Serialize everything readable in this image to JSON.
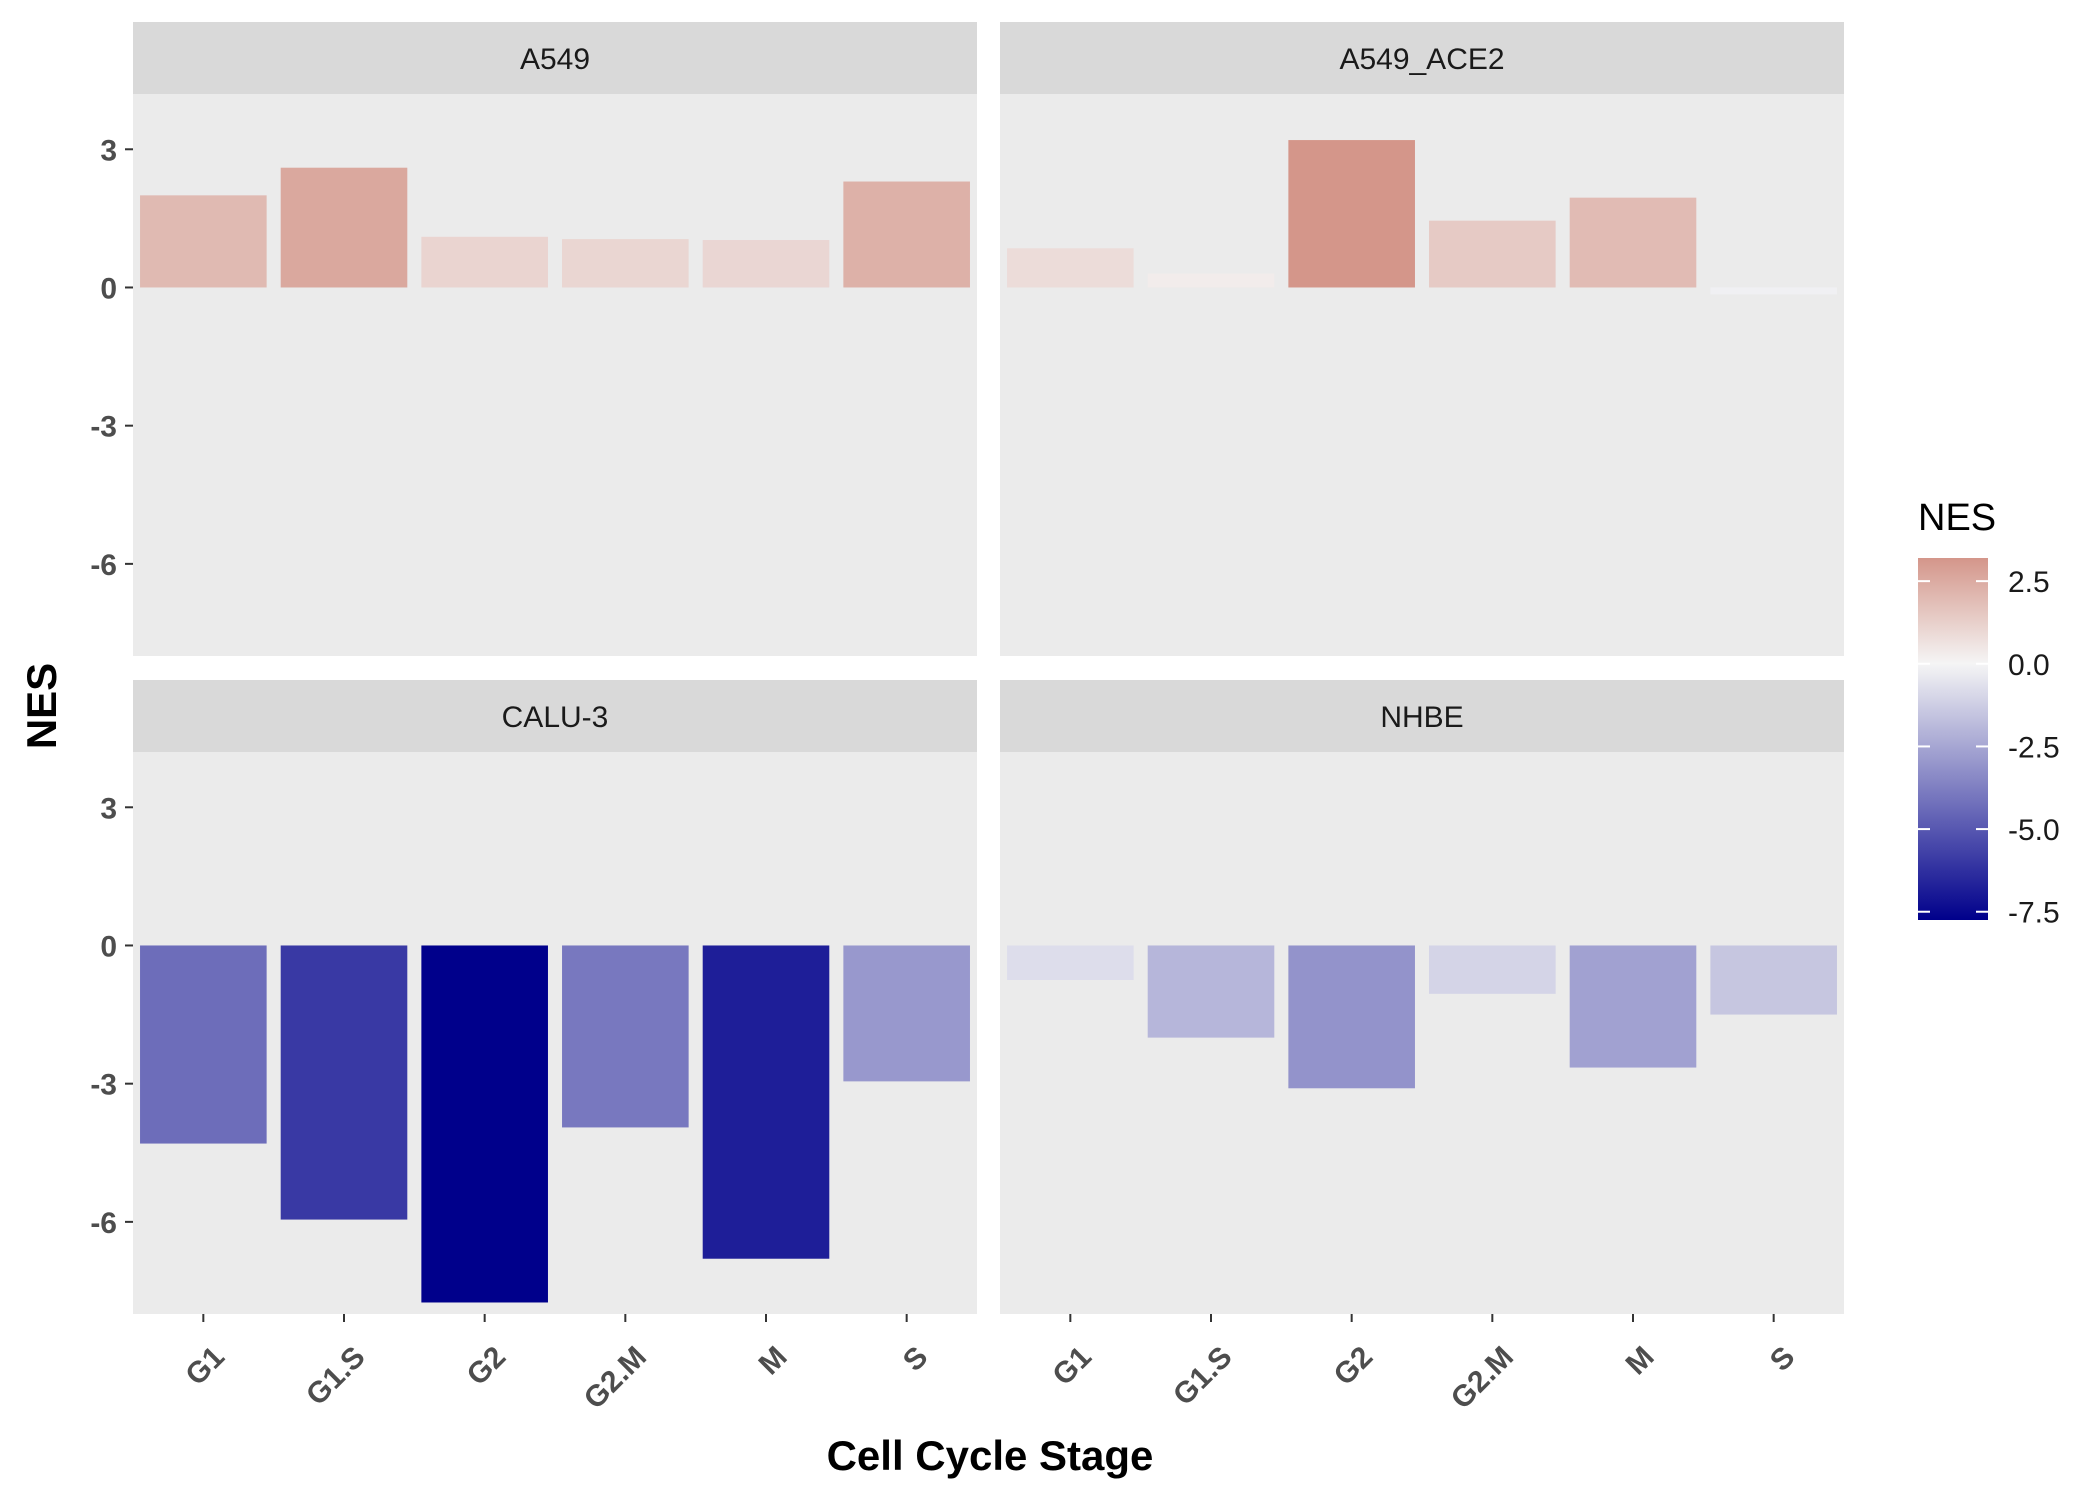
{
  "chart_data": {
    "type": "bar",
    "facet_layout": "2x2",
    "xlabel": "Cell Cycle Stage",
    "ylabel": "NES",
    "ylim": [
      -8.0,
      4.2
    ],
    "yticks": [
      3,
      0,
      -3,
      -6
    ],
    "grid": false,
    "categories": [
      "G1",
      "G1.S",
      "G2",
      "G2.M",
      "M",
      "S"
    ],
    "facets": [
      {
        "name": "A549",
        "values": [
          2.0,
          2.6,
          1.1,
          1.05,
          1.03,
          2.3
        ]
      },
      {
        "name": "A549_ACE2",
        "values": [
          0.85,
          0.3,
          3.2,
          1.45,
          1.95,
          -0.15
        ]
      },
      {
        "name": "CALU-3",
        "values": [
          -4.3,
          -5.95,
          -7.75,
          -3.95,
          -6.8,
          -2.95
        ]
      },
      {
        "name": "NHBE",
        "values": [
          -0.75,
          -2.0,
          -3.1,
          -1.05,
          -2.65,
          -1.5
        ]
      }
    ],
    "legend": {
      "title": "NES",
      "position": "right",
      "breaks": [
        2.5,
        0.0,
        -2.5,
        -5.0,
        -7.5
      ],
      "break_labels": [
        "2.5",
        "0.0",
        "-2.5",
        "-5.0",
        "-7.5"
      ],
      "range": [
        -7.75,
        3.2
      ]
    },
    "colors": {
      "high": "#d4968a",
      "mid": "#f5f5f5",
      "low": "#00008b",
      "panel": "#ebebeb",
      "strip": "#d9d9d9"
    }
  }
}
